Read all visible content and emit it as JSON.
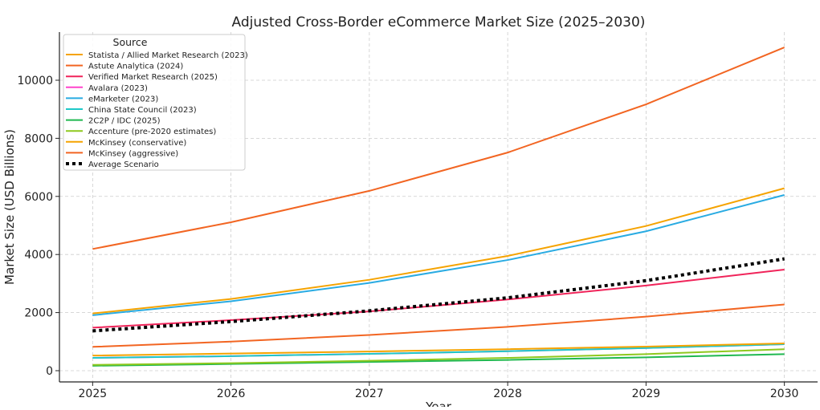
{
  "chart_data": {
    "type": "line",
    "title": "Adjusted Cross-Border eCommerce Market Size (2025–2030)",
    "xlabel": "Year",
    "ylabel": "Market Size (USD Billions)",
    "x": [
      2025,
      2026,
      2027,
      2028,
      2029,
      2030
    ],
    "xticks": [
      "2025",
      "2026",
      "2027",
      "2028",
      "2029",
      "2030"
    ],
    "yticks": [
      "0",
      "2000",
      "4000",
      "6000",
      "8000",
      "10000"
    ],
    "ylim": [
      -387,
      11657
    ],
    "xlim": [
      2024.76,
      2030.24
    ],
    "grid": true,
    "legend_title": "Source",
    "legend_placement": "top-left",
    "series": [
      {
        "name": "Statista / Allied Market Research (2023)",
        "color": "#f5a300",
        "style": "solid",
        "values": [
          1970,
          2470,
          3130,
          3950,
          4980,
          6280
        ]
      },
      {
        "name": "Astute Analytica (2024)",
        "color": "#f26522",
        "style": "solid",
        "values": [
          820,
          1000,
          1230,
          1510,
          1860,
          2280
        ]
      },
      {
        "name": "Verified Market Research (2025)",
        "color": "#f0245a",
        "style": "solid",
        "values": [
          1480,
          1740,
          2040,
          2450,
          2930,
          3480
        ]
      },
      {
        "name": "Avalara (2023)",
        "color": "#ff44cc",
        "style": "solid",
        "values": [
          440,
          500,
          580,
          670,
          780,
          910
        ]
      },
      {
        "name": "eMarketer (2023)",
        "color": "#29abe2",
        "style": "solid",
        "values": [
          1910,
          2390,
          3020,
          3810,
          4800,
          6050
        ]
      },
      {
        "name": "China State Council (2023)",
        "color": "#1ec8c8",
        "style": "solid",
        "values": [
          440,
          500,
          580,
          670,
          780,
          910
        ]
      },
      {
        "name": "2C2P / IDC (2025)",
        "color": "#1fb84f",
        "style": "solid",
        "values": [
          170,
          230,
          300,
          370,
          460,
          570
        ]
      },
      {
        "name": "Accenture (pre-2020 estimates)",
        "color": "#8ec81e",
        "style": "solid",
        "values": [
          200,
          260,
          340,
          440,
          570,
          740
        ]
      },
      {
        "name": "McKinsey (conservative)",
        "color": "#f5a300",
        "style": "solid",
        "values": [
          520,
          590,
          660,
          740,
          830,
          940
        ]
      },
      {
        "name": "McKinsey (aggressive)",
        "color": "#f26522",
        "style": "solid",
        "values": [
          4190,
          5110,
          6190,
          7510,
          9170,
          11130
        ]
      },
      {
        "name": "Average Scenario",
        "color": "#000000",
        "style": "dotted",
        "values": [
          1370,
          1690,
          2060,
          2510,
          3100,
          3850
        ]
      }
    ]
  }
}
